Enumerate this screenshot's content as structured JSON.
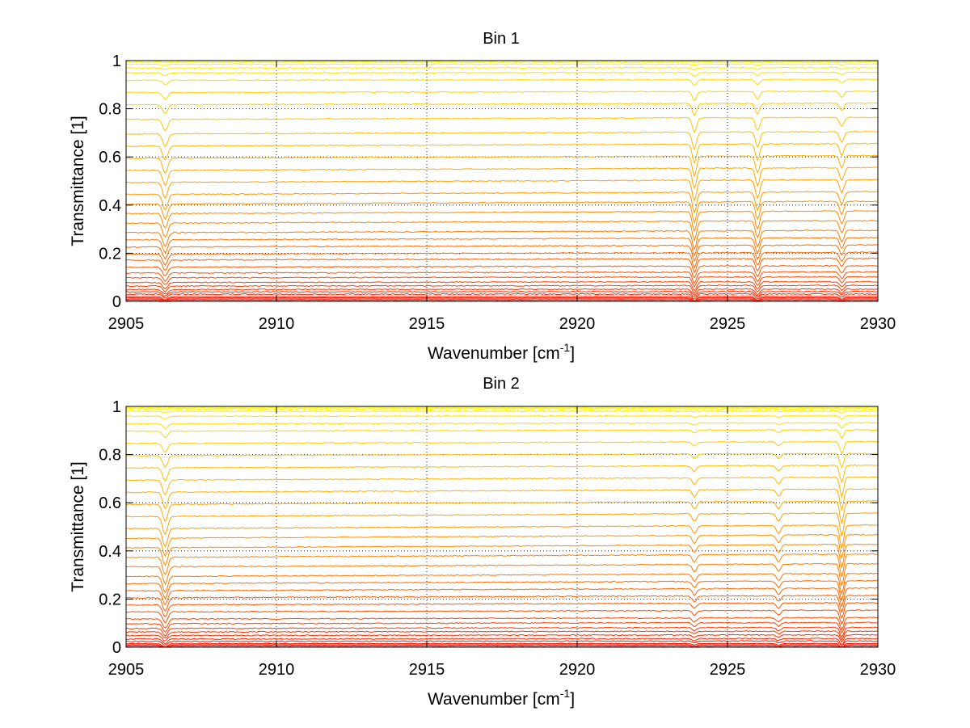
{
  "chart_data": [
    {
      "type": "line",
      "title": "Bin 1",
      "xlabel": "Wavenumber [cm",
      "xlabel_sup": "-1",
      "xlabel_suffix": "]",
      "ylabel": "Transmittance [1]",
      "xlim": [
        2905,
        2930
      ],
      "ylim": [
        0,
        1
      ],
      "xticks": [
        2905,
        2910,
        2915,
        2920,
        2925,
        2930
      ],
      "yticks": [
        0,
        0.2,
        0.4,
        0.6,
        0.8,
        1
      ],
      "xtick_labels": [
        "2905",
        "2910",
        "2915",
        "2920",
        "2925",
        "2930"
      ],
      "ytick_labels": [
        "0",
        "0.2",
        "0.4",
        "0.6",
        "0.8",
        "1"
      ],
      "grid": true,
      "legend": "none",
      "colormap": "autumn (red to yellow)",
      "series_count": 36,
      "baseline_levels": [
        0.0,
        0.005,
        0.01,
        0.015,
        0.02,
        0.03,
        0.04,
        0.05,
        0.065,
        0.08,
        0.1,
        0.12,
        0.145,
        0.175,
        0.2,
        0.23,
        0.26,
        0.29,
        0.33,
        0.37,
        0.41,
        0.45,
        0.5,
        0.55,
        0.6,
        0.65,
        0.7,
        0.76,
        0.82,
        0.87,
        0.92,
        0.95,
        0.97,
        0.985,
        0.993,
        0.998
      ],
      "baseline_slope": -0.012,
      "absorption_lines": [
        {
          "x": 2906.3,
          "depth": 0.06,
          "width": 0.12
        },
        {
          "x": 2923.9,
          "depth": 0.08,
          "width": 0.1
        },
        {
          "x": 2926.0,
          "depth": 0.07,
          "width": 0.1
        },
        {
          "x": 2928.8,
          "depth": 0.05,
          "width": 0.1
        }
      ]
    },
    {
      "type": "line",
      "title": "Bin 2",
      "xlabel": "Wavenumber [cm",
      "xlabel_sup": "-1",
      "xlabel_suffix": "]",
      "ylabel": "Transmittance [1]",
      "xlim": [
        2905,
        2930
      ],
      "ylim": [
        0,
        1
      ],
      "xticks": [
        2905,
        2910,
        2915,
        2920,
        2925,
        2930
      ],
      "yticks": [
        0,
        0.2,
        0.4,
        0.6,
        0.8,
        1
      ],
      "xtick_labels": [
        "2905",
        "2910",
        "2915",
        "2920",
        "2925",
        "2930"
      ],
      "ytick_labels": [
        "0",
        "0.2",
        "0.4",
        "0.6",
        "0.8",
        "1"
      ],
      "grid": true,
      "legend": "none",
      "colormap": "autumn (red to yellow)",
      "series_count": 36,
      "baseline_levels": [
        0.0,
        0.005,
        0.01,
        0.015,
        0.025,
        0.035,
        0.05,
        0.065,
        0.08,
        0.1,
        0.12,
        0.15,
        0.18,
        0.21,
        0.24,
        0.27,
        0.3,
        0.34,
        0.38,
        0.42,
        0.46,
        0.5,
        0.55,
        0.6,
        0.65,
        0.7,
        0.75,
        0.8,
        0.85,
        0.9,
        0.93,
        0.96,
        0.98,
        0.99,
        0.995,
        0.999
      ],
      "baseline_slope": -0.015,
      "absorption_lines": [
        {
          "x": 2906.3,
          "depth": 0.07,
          "width": 0.12
        },
        {
          "x": 2923.9,
          "depth": 0.03,
          "width": 0.1
        },
        {
          "x": 2926.7,
          "depth": 0.03,
          "width": 0.1
        },
        {
          "x": 2928.8,
          "depth": 0.09,
          "width": 0.09
        }
      ]
    }
  ]
}
